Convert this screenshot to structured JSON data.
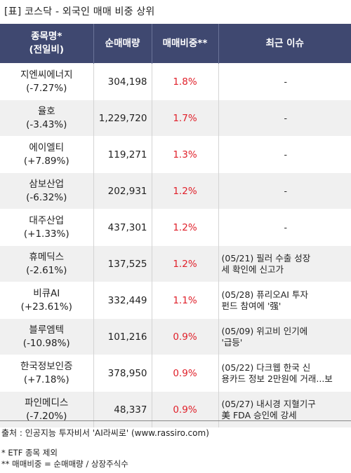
{
  "title": "[표] 코스닥 - 외국인 매매 비중 상위",
  "headers": {
    "name": "종목명*",
    "name_sub": "(전일비)",
    "net_volume": "순매매량",
    "trade_ratio": "매매비중**",
    "recent_issue": "최근 이슈"
  },
  "rows": [
    {
      "name": "지엔씨에너지",
      "change": "(-7.27%)",
      "net_volume": "304,198",
      "ratio": "1.8%",
      "issue_line1": "-",
      "issue_line2": ""
    },
    {
      "name": "율호",
      "change": "(-3.43%)",
      "net_volume": "1,229,720",
      "ratio": "1.7%",
      "issue_line1": "-",
      "issue_line2": ""
    },
    {
      "name": "에이엘티",
      "change": "(+7.89%)",
      "net_volume": "119,271",
      "ratio": "1.3%",
      "issue_line1": "-",
      "issue_line2": ""
    },
    {
      "name": "삼보산업",
      "change": "(-6.32%)",
      "net_volume": "202,931",
      "ratio": "1.2%",
      "issue_line1": "-",
      "issue_line2": ""
    },
    {
      "name": "대주산업",
      "change": "(+1.33%)",
      "net_volume": "437,301",
      "ratio": "1.2%",
      "issue_line1": "-",
      "issue_line2": ""
    },
    {
      "name": "휴메딕스",
      "change": "(-2.61%)",
      "net_volume": "137,525",
      "ratio": "1.2%",
      "issue_line1": "(05/21) 필러 수출 성장",
      "issue_line2": "세 확인에 신고가"
    },
    {
      "name": "비큐AI",
      "change": "(+23.61%)",
      "net_volume": "332,449",
      "ratio": "1.1%",
      "issue_line1": "(05/28) 퓨리오AI 투자",
      "issue_line2": "펀드 참여에 '强'"
    },
    {
      "name": "블루엠텍",
      "change": "(-10.98%)",
      "net_volume": "101,216",
      "ratio": "0.9%",
      "issue_line1": "(05/09) 위고비 인기에",
      "issue_line2": "'급등'"
    },
    {
      "name": "한국정보인증",
      "change": "(+7.18%)",
      "net_volume": "378,950",
      "ratio": "0.9%",
      "issue_line1": "(05/22) 다크웹 한국 신",
      "issue_line2": "용카드 정보 2만원에 거래...보"
    },
    {
      "name": "파인메디스",
      "change": "(-7.20%)",
      "net_volume": "48,337",
      "ratio": "0.9%",
      "issue_line1": "(05/27) 내시경 지혈기구",
      "issue_line2": "美 FDA 승인에 강세"
    }
  ],
  "footer": {
    "source": "출처 : 인공지능 투자비서 'AI라씨로' (www.rassiro.com)",
    "note1": "* ETF 종목 제외",
    "note2": "** 매매비중 = 순매매량 / 상장주식수"
  },
  "colors": {
    "header_bg": "#3f4870",
    "header_text": "#ffffff",
    "ratio_text": "#e0202a",
    "row_alt_bg": "#f0f0f0"
  }
}
